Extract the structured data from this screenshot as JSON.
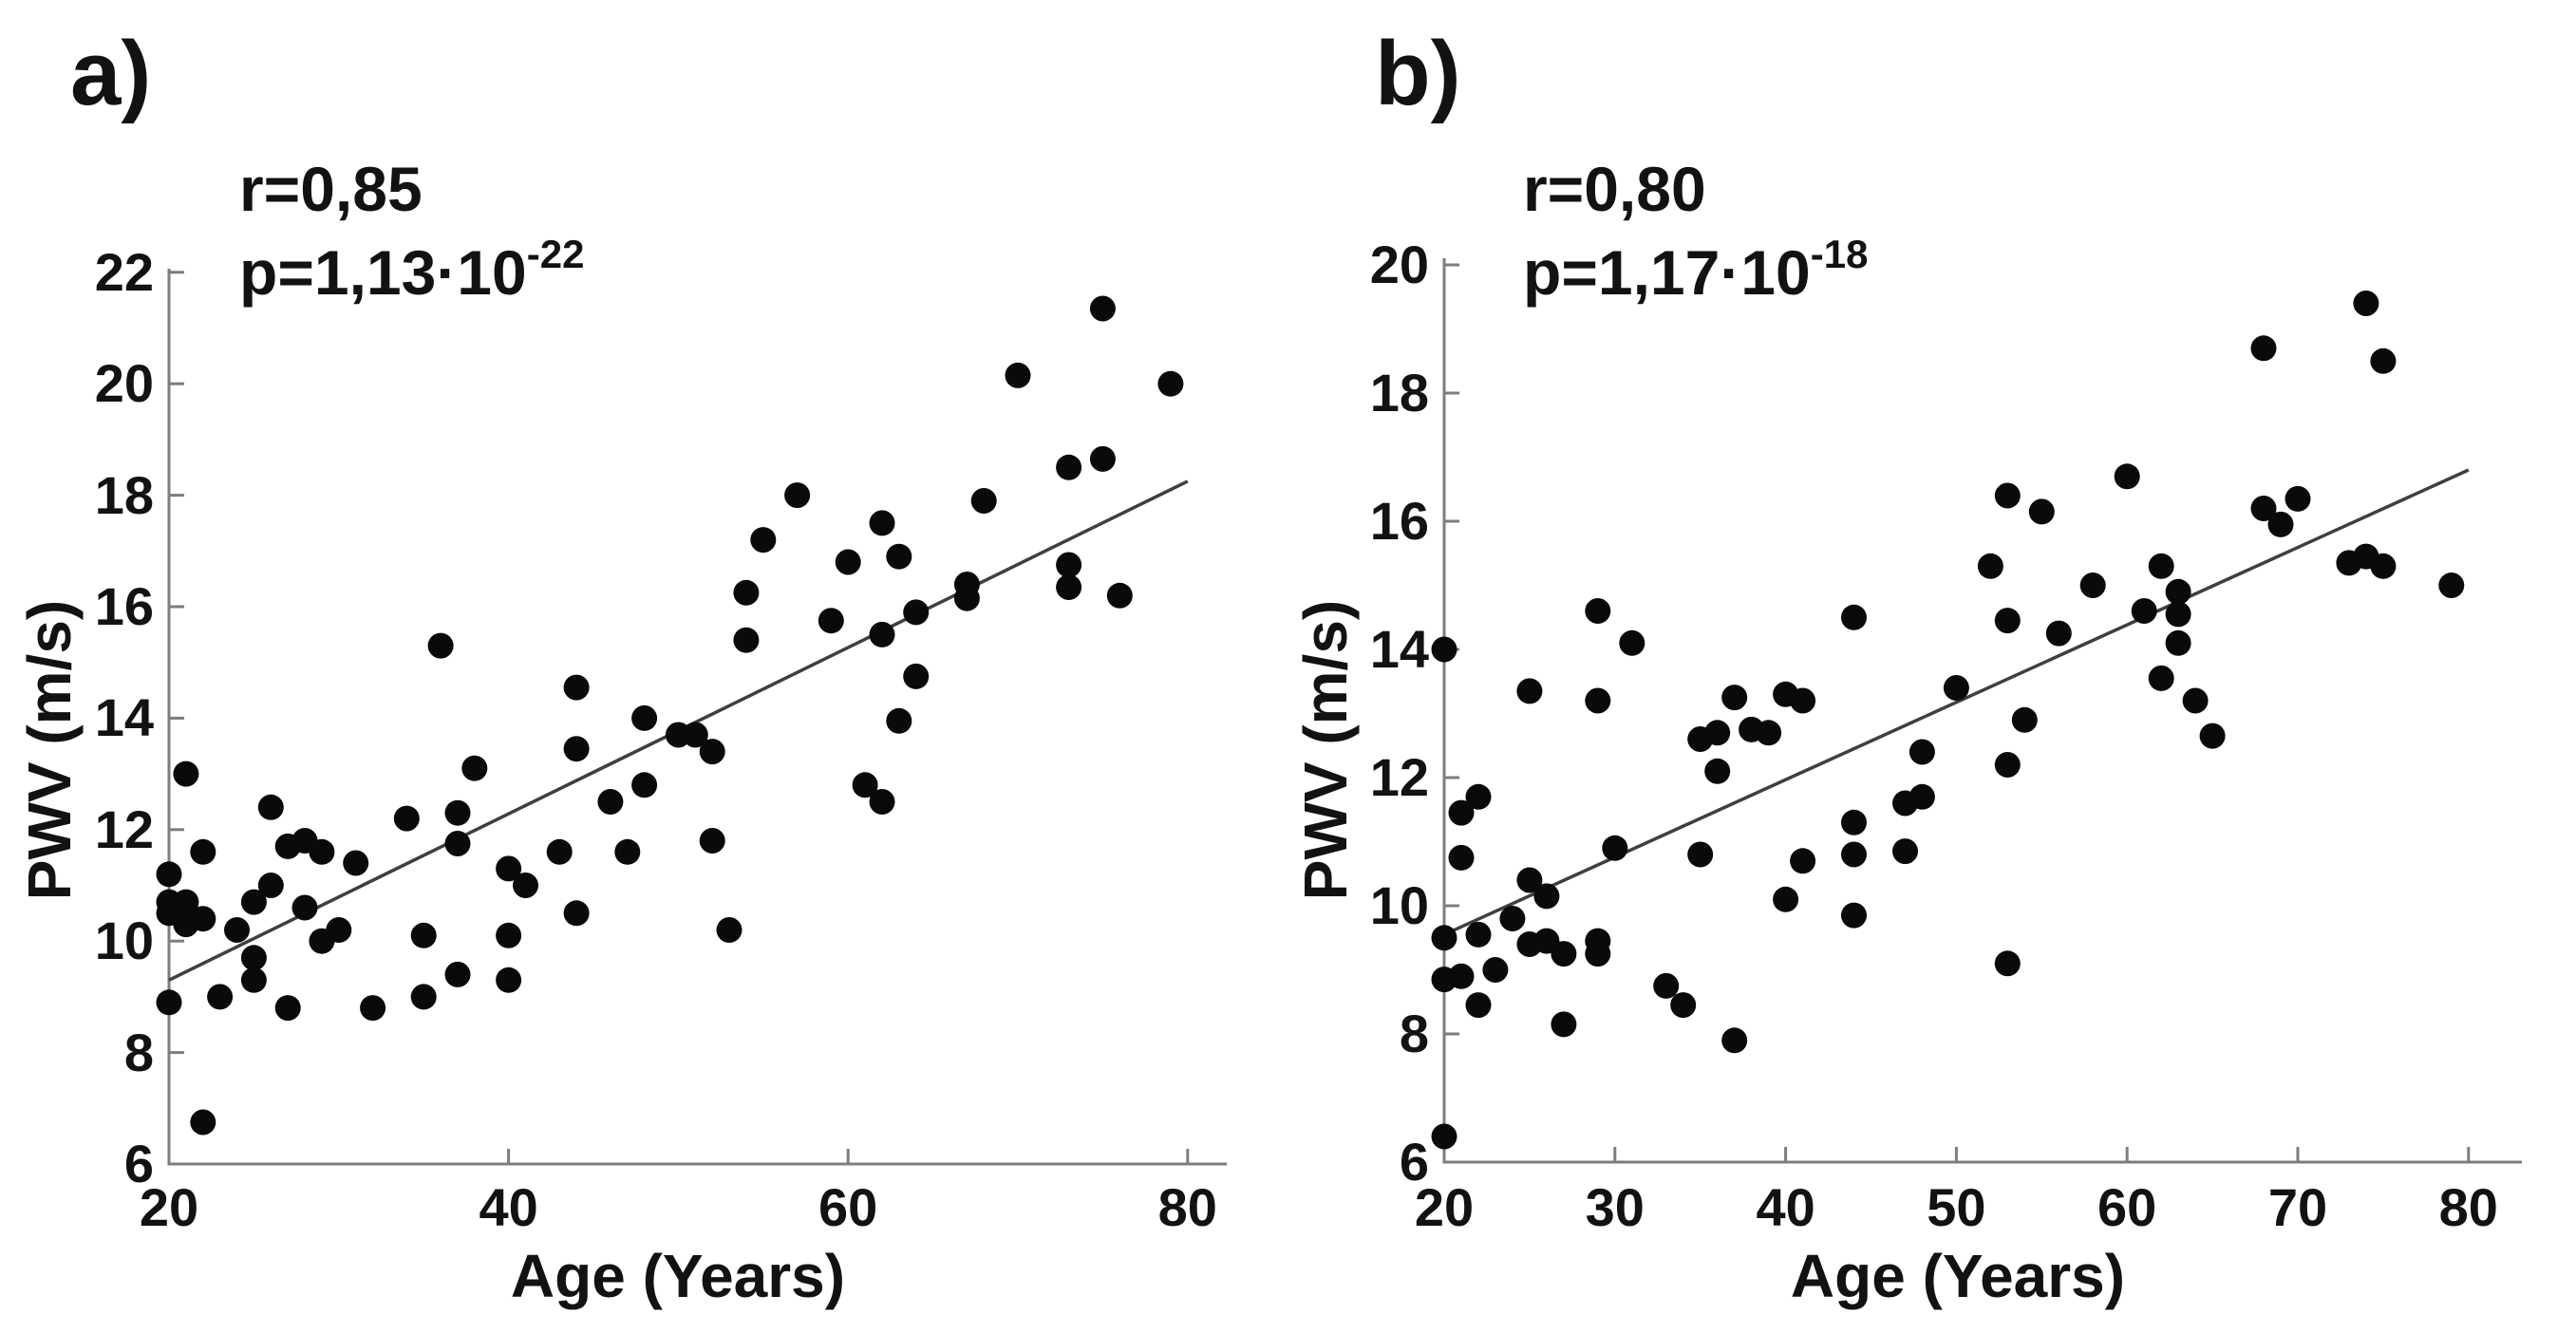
{
  "figure": {
    "background": "#ffffff",
    "dot_color": "#0a0a0a",
    "regression_line_color": "#3f3f3f",
    "axis_color": "#7d7d7d",
    "text_color": "#121212"
  },
  "chart_data": [
    {
      "type": "scatter",
      "panel_label": "a)",
      "annotation_r": "r=0,85",
      "annotation_p_base": "p=1,13·10",
      "annotation_p_exponent": "-22",
      "xlabel": "Age (Years)",
      "ylabel": "PWV (m/s)",
      "xlim": [
        20,
        80
      ],
      "ylim": [
        6,
        22
      ],
      "xticks": [
        20,
        40,
        60,
        80
      ],
      "yticks": [
        6,
        8,
        10,
        12,
        14,
        16,
        18,
        20,
        22
      ],
      "grid": false,
      "legend": false,
      "regression_line": {
        "x1": 20,
        "y1": 9.3,
        "x2": 80,
        "y2": 18.25
      },
      "points": [
        [
          20,
          11.2
        ],
        [
          20,
          10.7
        ],
        [
          20,
          10.5
        ],
        [
          20,
          8.9
        ],
        [
          21,
          13.0
        ],
        [
          21,
          10.7
        ],
        [
          21,
          10.3
        ],
        [
          22,
          11.6
        ],
        [
          22,
          10.4
        ],
        [
          22,
          6.75
        ],
        [
          23,
          9.0
        ],
        [
          24,
          10.2
        ],
        [
          25,
          10.7
        ],
        [
          25,
          9.7
        ],
        [
          25,
          9.3
        ],
        [
          26,
          12.4
        ],
        [
          26,
          11.0
        ],
        [
          27,
          11.7
        ],
        [
          27,
          8.8
        ],
        [
          28,
          11.8
        ],
        [
          28,
          10.6
        ],
        [
          29,
          11.6
        ],
        [
          29,
          10.0
        ],
        [
          30,
          10.2
        ],
        [
          31,
          11.4
        ],
        [
          32,
          8.8
        ],
        [
          34,
          12.2
        ],
        [
          35,
          10.1
        ],
        [
          35,
          9.0
        ],
        [
          36,
          15.3
        ],
        [
          37,
          12.3
        ],
        [
          37,
          11.75
        ],
        [
          37,
          9.4
        ],
        [
          38,
          13.1
        ],
        [
          40,
          11.3
        ],
        [
          40,
          10.1
        ],
        [
          40,
          9.3
        ],
        [
          41,
          11.0
        ],
        [
          43,
          11.6
        ],
        [
          44,
          14.55
        ],
        [
          44,
          13.45
        ],
        [
          44,
          10.5
        ],
        [
          46,
          12.5
        ],
        [
          47,
          11.6
        ],
        [
          48,
          14.0
        ],
        [
          48,
          12.8
        ],
        [
          50,
          13.7
        ],
        [
          51,
          13.7
        ],
        [
          52,
          13.4
        ],
        [
          52,
          11.8
        ],
        [
          53,
          10.2
        ],
        [
          54,
          16.25
        ],
        [
          54,
          15.4
        ],
        [
          55,
          17.2
        ],
        [
          57,
          18.0
        ],
        [
          59,
          15.75
        ],
        [
          60,
          16.8
        ],
        [
          61,
          12.8
        ],
        [
          62,
          17.5
        ],
        [
          62,
          15.5
        ],
        [
          62,
          12.5
        ],
        [
          63,
          16.9
        ],
        [
          63,
          13.95
        ],
        [
          64,
          15.9
        ],
        [
          64,
          14.75
        ],
        [
          67,
          16.4
        ],
        [
          67,
          16.15
        ],
        [
          68,
          17.9
        ],
        [
          70,
          20.15
        ],
        [
          73,
          18.5
        ],
        [
          73,
          16.75
        ],
        [
          73,
          16.35
        ],
        [
          75,
          21.35
        ],
        [
          75,
          18.65
        ],
        [
          76,
          16.2
        ],
        [
          79,
          20.0
        ]
      ]
    },
    {
      "type": "scatter",
      "panel_label": "b)",
      "annotation_r": "r=0,80",
      "annotation_p_base": "p=1,17·10",
      "annotation_p_exponent": "-18",
      "xlabel": "Age (Years)",
      "ylabel": "PWV (m/s)",
      "xlim": [
        20,
        80
      ],
      "ylim": [
        6,
        20
      ],
      "xticks": [
        20,
        30,
        40,
        50,
        60,
        70,
        80
      ],
      "yticks": [
        6,
        8,
        10,
        12,
        14,
        16,
        18,
        20
      ],
      "grid": false,
      "legend": false,
      "regression_line": {
        "x1": 20,
        "y1": 9.55,
        "x2": 80,
        "y2": 16.8
      },
      "points": [
        [
          20,
          14.0
        ],
        [
          20,
          9.5
        ],
        [
          20,
          8.85
        ],
        [
          20,
          6.4
        ],
        [
          21,
          11.45
        ],
        [
          21,
          10.75
        ],
        [
          21,
          8.9
        ],
        [
          22,
          11.7
        ],
        [
          22,
          9.55
        ],
        [
          22,
          8.45
        ],
        [
          23,
          9.0
        ],
        [
          24,
          9.8
        ],
        [
          25,
          13.35
        ],
        [
          25,
          10.4
        ],
        [
          25,
          9.4
        ],
        [
          26,
          10.15
        ],
        [
          26,
          9.45
        ],
        [
          27,
          9.25
        ],
        [
          27,
          8.15
        ],
        [
          29,
          14.6
        ],
        [
          29,
          13.2
        ],
        [
          29,
          9.45
        ],
        [
          29,
          9.25
        ],
        [
          30,
          10.9
        ],
        [
          31,
          14.1
        ],
        [
          33,
          8.75
        ],
        [
          34,
          8.45
        ],
        [
          35,
          12.6
        ],
        [
          35,
          10.8
        ],
        [
          36,
          12.7
        ],
        [
          36,
          12.1
        ],
        [
          37,
          13.25
        ],
        [
          37,
          7.9
        ],
        [
          38,
          12.75
        ],
        [
          39,
          12.7
        ],
        [
          40,
          13.3
        ],
        [
          40,
          10.1
        ],
        [
          41,
          13.2
        ],
        [
          41,
          10.7
        ],
        [
          44,
          14.5
        ],
        [
          44,
          11.3
        ],
        [
          44,
          10.8
        ],
        [
          44,
          9.85
        ],
        [
          47,
          11.6
        ],
        [
          47,
          10.85
        ],
        [
          48,
          12.4
        ],
        [
          48,
          11.7
        ],
        [
          50,
          13.4
        ],
        [
          52,
          15.3
        ],
        [
          53,
          16.4
        ],
        [
          53,
          14.45
        ],
        [
          53,
          12.2
        ],
        [
          53,
          9.1
        ],
        [
          54,
          12.9
        ],
        [
          55,
          16.15
        ],
        [
          56,
          14.25
        ],
        [
          58,
          15.0
        ],
        [
          60,
          16.7
        ],
        [
          61,
          14.6
        ],
        [
          62,
          15.3
        ],
        [
          62,
          13.55
        ],
        [
          63,
          14.9
        ],
        [
          63,
          14.55
        ],
        [
          63,
          14.1
        ],
        [
          64,
          13.2
        ],
        [
          65,
          12.65
        ],
        [
          68,
          18.7
        ],
        [
          68,
          16.2
        ],
        [
          69,
          15.95
        ],
        [
          70,
          16.35
        ],
        [
          73,
          15.35
        ],
        [
          74,
          15.45
        ],
        [
          74,
          19.4
        ],
        [
          75,
          18.5
        ],
        [
          75,
          15.3
        ],
        [
          79,
          15.0
        ]
      ]
    }
  ]
}
